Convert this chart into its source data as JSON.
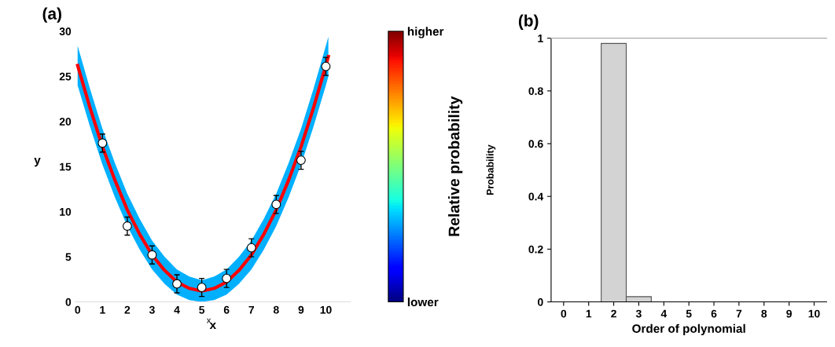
{
  "chart_data": [
    {
      "type": "line",
      "title": "(a)",
      "xlabel": "x",
      "ylabel": "y",
      "clabel": "Relative probability",
      "clim": [
        0,
        1
      ],
      "cticks": [
        {
          "value": 0,
          "label": "lower"
        },
        {
          "value": 1,
          "label": "higher"
        }
      ],
      "xlim": [
        -0.1,
        11
      ],
      "ylim": [
        0,
        30
      ],
      "xticks": [
        0,
        1,
        2,
        3,
        4,
        5,
        6,
        7,
        8,
        9,
        10
      ],
      "yticks": [
        0,
        5,
        10,
        15,
        20,
        25,
        30
      ],
      "grid": false,
      "annotations": [
        "x"
      ],
      "series": [
        {
          "type": "line",
          "color": "#ff0000",
          "x": [
            0,
            0.5,
            1,
            1.5,
            2,
            2.5,
            3,
            3.5,
            4,
            4.5,
            5,
            5.5,
            6,
            6.5,
            7,
            7.5,
            8,
            8.5,
            9,
            9.5,
            10,
            10.1
          ],
          "values": [
            26.2,
            21.5,
            17.2,
            13.5,
            10.2,
            7.5,
            5.2,
            3.5,
            2.2,
            1.5,
            1.2,
            1.5,
            2.2,
            3.5,
            5.2,
            7.5,
            10.2,
            13.5,
            17.2,
            21.5,
            26.2,
            27.2
          ],
          "lower": [
            24.0,
            19.4,
            15.2,
            11.6,
            8.4,
            5.8,
            3.6,
            2.0,
            0.8,
            0.2,
            0.0,
            0.2,
            0.8,
            2.0,
            3.6,
            5.8,
            8.4,
            11.6,
            15.2,
            19.4,
            24.0,
            25.0
          ],
          "upper": [
            28.4,
            23.6,
            19.2,
            15.4,
            12.0,
            9.2,
            6.8,
            5.0,
            3.6,
            2.8,
            2.4,
            2.8,
            3.6,
            5.0,
            6.8,
            9.2,
            12.0,
            15.4,
            19.2,
            23.6,
            28.4,
            29.4
          ]
        },
        {
          "type": "scatter",
          "color": "#ffffff",
          "marker": "circle",
          "x": [
            1,
            2,
            3,
            4,
            5,
            6,
            7,
            8,
            9,
            10
          ],
          "values": [
            17.6,
            8.4,
            5.2,
            2.0,
            1.6,
            2.6,
            6.0,
            10.8,
            15.7,
            26.1
          ],
          "errors": [
            1.0,
            1.0,
            1.0,
            1.0,
            1.0,
            1.0,
            1.0,
            1.0,
            1.0,
            1.0
          ]
        }
      ]
    },
    {
      "type": "bar",
      "title": "(b)",
      "xlabel": "Order of polynomial",
      "ylabel": "Probability",
      "categories": [
        "0",
        "1",
        "2",
        "3",
        "4",
        "5",
        "6",
        "7",
        "8",
        "9",
        "10"
      ],
      "values": [
        0,
        0,
        0.98,
        0.02,
        0,
        0,
        0,
        0,
        0,
        0,
        0
      ],
      "color": "#d3d3d3",
      "ylim": [
        0,
        1
      ],
      "yticks": [
        0,
        0.2,
        0.4,
        0.6,
        0.8,
        1
      ],
      "grid": false
    }
  ]
}
